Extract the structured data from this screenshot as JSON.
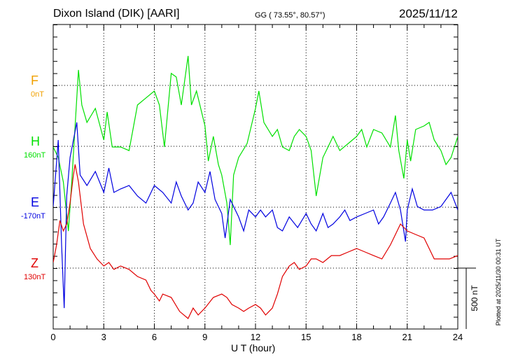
{
  "header": {
    "station": "Dixon Island (DIK)  [AARI]",
    "coords": "GG ( 73.55°,  80.57°)",
    "date": "2025/11/12"
  },
  "footer": {
    "plotted": "Plotted at 2025/11/30 00:31 UT"
  },
  "chart_data": {
    "type": "line",
    "xlabel": "U T (hour)",
    "xlim": [
      0,
      24
    ],
    "xticks": [
      "0",
      "3",
      "6",
      "9",
      "12",
      "15",
      "18",
      "21",
      "24"
    ],
    "scale_label": "500 nT",
    "scale_nT": 500,
    "grid": true,
    "x": [],
    "series": [
      {
        "name": "F",
        "baseline_label": "0nT",
        "color": "#f0a000",
        "points": []
      },
      {
        "name": "H",
        "baseline_label": "160nT",
        "color": "#00e000",
        "points": [
          [
            0,
            -6
          ],
          [
            0.3,
            -92
          ],
          [
            0.6,
            -293
          ],
          [
            0.9,
            -696
          ],
          [
            1.1,
            -293
          ],
          [
            1.3,
            167
          ],
          [
            1.5,
            627
          ],
          [
            1.7,
            339
          ],
          [
            2,
            196
          ],
          [
            2.5,
            311
          ],
          [
            3,
            52
          ],
          [
            3.2,
            282
          ],
          [
            3.5,
            -6
          ],
          [
            4,
            -6
          ],
          [
            4.5,
            -35
          ],
          [
            5,
            339
          ],
          [
            5.5,
            397
          ],
          [
            6,
            454
          ],
          [
            6.3,
            339
          ],
          [
            6.6,
            -6
          ],
          [
            7,
            598
          ],
          [
            7.3,
            569
          ],
          [
            7.6,
            339
          ],
          [
            8,
            742
          ],
          [
            8.2,
            339
          ],
          [
            8.5,
            454
          ],
          [
            9,
            167
          ],
          [
            9.2,
            -121
          ],
          [
            9.5,
            81
          ],
          [
            9.8,
            -150
          ],
          [
            10,
            -236
          ],
          [
            10.3,
            -466
          ],
          [
            10.5,
            -811
          ],
          [
            10.7,
            -236
          ],
          [
            11,
            -92
          ],
          [
            11.5,
            23
          ],
          [
            12,
            311
          ],
          [
            12.2,
            454
          ],
          [
            12.5,
            196
          ],
          [
            13,
            81
          ],
          [
            13.3,
            138
          ],
          [
            13.6,
            -6
          ],
          [
            14,
            -35
          ],
          [
            14.3,
            81
          ],
          [
            14.6,
            138
          ],
          [
            15,
            81
          ],
          [
            15.3,
            -35
          ],
          [
            15.6,
            -408
          ],
          [
            16,
            -92
          ],
          [
            16.3,
            -6
          ],
          [
            16.6,
            81
          ],
          [
            17,
            -35
          ],
          [
            17.5,
            23
          ],
          [
            18,
            81
          ],
          [
            18.3,
            138
          ],
          [
            18.6,
            -6
          ],
          [
            19,
            138
          ],
          [
            19.5,
            109
          ],
          [
            20,
            -6
          ],
          [
            20.3,
            253
          ],
          [
            20.5,
            -35
          ],
          [
            20.8,
            -264
          ],
          [
            21,
            52
          ],
          [
            21.2,
            -121
          ],
          [
            21.5,
            138
          ],
          [
            22,
            167
          ],
          [
            22.3,
            196
          ],
          [
            22.6,
            52
          ],
          [
            23,
            -35
          ],
          [
            23.3,
            -150
          ],
          [
            23.6,
            -92
          ],
          [
            24,
            81
          ]
        ]
      },
      {
        "name": "E",
        "baseline_label": "-170nT",
        "color": "#0000e0",
        "points": [
          [
            0,
            6
          ],
          [
            0.3,
            552
          ],
          [
            0.5,
            -310
          ],
          [
            0.65,
            -828
          ],
          [
            0.8,
            92
          ],
          [
            1,
            408
          ],
          [
            1.2,
            552
          ],
          [
            1.4,
            696
          ],
          [
            1.6,
            264
          ],
          [
            2,
            178
          ],
          [
            2.5,
            293
          ],
          [
            3,
            121
          ],
          [
            3.3,
            322
          ],
          [
            3.6,
            121
          ],
          [
            4,
            150
          ],
          [
            4.5,
            178
          ],
          [
            5,
            92
          ],
          [
            5.5,
            34
          ],
          [
            6,
            178
          ],
          [
            6.5,
            121
          ],
          [
            7,
            34
          ],
          [
            7.3,
            207
          ],
          [
            7.6,
            92
          ],
          [
            8,
            -23
          ],
          [
            8.3,
            34
          ],
          [
            8.6,
            207
          ],
          [
            9,
            121
          ],
          [
            9.3,
            293
          ],
          [
            9.6,
            63
          ],
          [
            10,
            -52
          ],
          [
            10.2,
            -253
          ],
          [
            10.5,
            63
          ],
          [
            11,
            -80
          ],
          [
            11.3,
            -195
          ],
          [
            11.6,
            -23
          ],
          [
            12,
            -80
          ],
          [
            12.3,
            -23
          ],
          [
            12.6,
            -80
          ],
          [
            13,
            -23
          ],
          [
            13.3,
            -167
          ],
          [
            13.6,
            -195
          ],
          [
            14,
            -80
          ],
          [
            14.5,
            -167
          ],
          [
            15,
            -52
          ],
          [
            15.3,
            -138
          ],
          [
            15.6,
            -195
          ],
          [
            16,
            -52
          ],
          [
            16.3,
            -167
          ],
          [
            16.6,
            -138
          ],
          [
            17,
            -80
          ],
          [
            17.3,
            -23
          ],
          [
            17.6,
            -109
          ],
          [
            18,
            -80
          ],
          [
            18.5,
            -52
          ],
          [
            19,
            -23
          ],
          [
            19.3,
            -138
          ],
          [
            19.6,
            -80
          ],
          [
            20,
            34
          ],
          [
            20.3,
            121
          ],
          [
            20.6,
            -23
          ],
          [
            20.9,
            -282
          ],
          [
            21,
            -23
          ],
          [
            21.3,
            150
          ],
          [
            21.6,
            6
          ],
          [
            22,
            -23
          ],
          [
            22.5,
            -23
          ],
          [
            23,
            6
          ],
          [
            23.3,
            63
          ],
          [
            23.6,
            121
          ],
          [
            24,
            -23
          ]
        ]
      },
      {
        "name": "Z",
        "baseline_label": "130nT",
        "color": "#e00000",
        "points": [
          [
            0,
            46
          ],
          [
            0.2,
            190
          ],
          [
            0.4,
            391
          ],
          [
            0.6,
            305
          ],
          [
            0.8,
            362
          ],
          [
            1,
            535
          ],
          [
            1.2,
            765
          ],
          [
            1.3,
            851
          ],
          [
            1.5,
            707
          ],
          [
            1.8,
            362
          ],
          [
            2.2,
            161
          ],
          [
            2.6,
            75
          ],
          [
            3,
            17
          ],
          [
            3.3,
            46
          ],
          [
            3.6,
            -11
          ],
          [
            4,
            17
          ],
          [
            4.5,
            -11
          ],
          [
            5,
            -69
          ],
          [
            5.5,
            -98
          ],
          [
            5.8,
            -184
          ],
          [
            6,
            -213
          ],
          [
            6.3,
            -270
          ],
          [
            6.5,
            -213
          ],
          [
            7,
            -241
          ],
          [
            7.5,
            -356
          ],
          [
            8,
            -414
          ],
          [
            8.3,
            -328
          ],
          [
            8.6,
            -385
          ],
          [
            9,
            -328
          ],
          [
            9.5,
            -241
          ],
          [
            10,
            -213
          ],
          [
            10.3,
            -241
          ],
          [
            10.6,
            -299
          ],
          [
            11,
            -328
          ],
          [
            11.3,
            -356
          ],
          [
            11.6,
            -328
          ],
          [
            12,
            -299
          ],
          [
            12.3,
            -328
          ],
          [
            12.6,
            -385
          ],
          [
            13,
            -328
          ],
          [
            13.3,
            -213
          ],
          [
            13.6,
            -69
          ],
          [
            14,
            17
          ],
          [
            14.3,
            46
          ],
          [
            14.6,
            -11
          ],
          [
            15,
            17
          ],
          [
            15.3,
            75
          ],
          [
            15.6,
            75
          ],
          [
            16,
            46
          ],
          [
            16.5,
            103
          ],
          [
            17,
            103
          ],
          [
            17.5,
            132
          ],
          [
            18,
            161
          ],
          [
            18.5,
            132
          ],
          [
            19,
            103
          ],
          [
            19.5,
            75
          ],
          [
            20,
            190
          ],
          [
            20.3,
            276
          ],
          [
            20.6,
            362
          ],
          [
            21,
            305
          ],
          [
            21.5,
            276
          ],
          [
            22,
            247
          ],
          [
            22.3,
            161
          ],
          [
            22.6,
            75
          ],
          [
            23,
            75
          ],
          [
            23.5,
            75
          ],
          [
            24,
            103
          ]
        ]
      }
    ]
  }
}
